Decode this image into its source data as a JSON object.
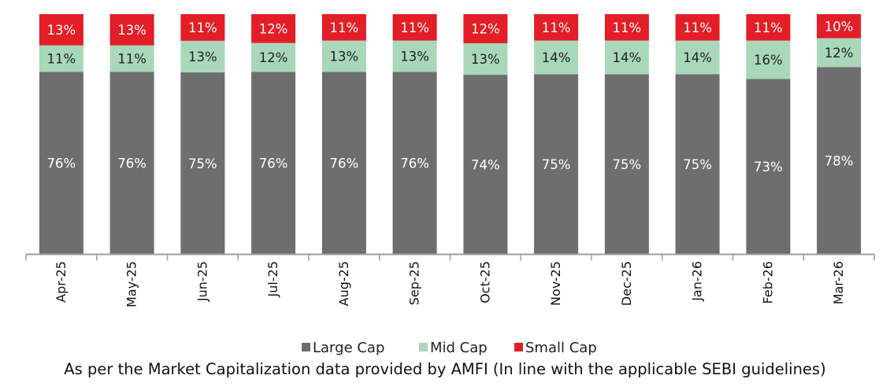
{
  "chart_data": {
    "type": "bar",
    "stacked": true,
    "title": "",
    "xlabel": "",
    "ylabel": "",
    "ylim": [
      0,
      100
    ],
    "grid": false,
    "legend_position": "bottom",
    "categories": [
      "Apr-25",
      "May-25",
      "Jun-25",
      "Jul-25",
      "Aug-25",
      "Sep-25",
      "Oct-25",
      "Nov-25",
      "Dec-25",
      "Jan-26",
      "Feb-26",
      "Mar-26"
    ],
    "series": [
      {
        "name": "Large Cap",
        "color": "#6e6e6e",
        "values": [
          76,
          76,
          75,
          76,
          76,
          76,
          74,
          75,
          75,
          75,
          73,
          78
        ],
        "labels": [
          "76%",
          "76%",
          "75%",
          "76%",
          "76%",
          "76%",
          "74%",
          "75%",
          "75%",
          "75%",
          "73%",
          "78%"
        ]
      },
      {
        "name": "Mid Cap",
        "color": "#a8d8b9",
        "values": [
          11,
          11,
          13,
          12,
          13,
          13,
          13,
          14,
          14,
          14,
          16,
          12
        ],
        "labels": [
          "11%",
          "11%",
          "13%",
          "12%",
          "13%",
          "13%",
          "13%",
          "14%",
          "14%",
          "14%",
          "16%",
          "12%"
        ]
      },
      {
        "name": "Small Cap",
        "color": "#e31e26",
        "values": [
          13,
          13,
          11,
          12,
          11,
          11,
          12,
          11,
          11,
          11,
          11,
          10
        ],
        "labels": [
          "13%",
          "13%",
          "11%",
          "12%",
          "11%",
          "11%",
          "12%",
          "11%",
          "11%",
          "11%",
          "11%",
          "10%"
        ]
      }
    ]
  },
  "footnote": "As per the Market Capitalization data provided by AMFI (In line with the applicable SEBI guidelines)"
}
